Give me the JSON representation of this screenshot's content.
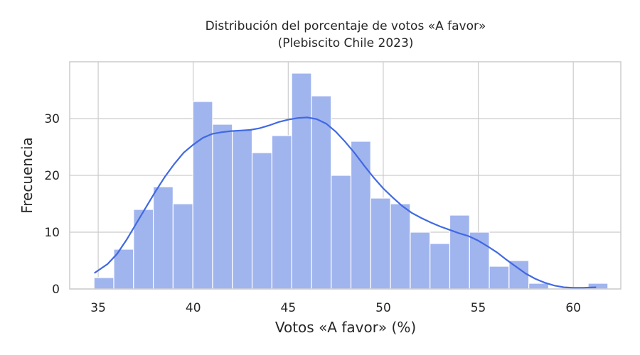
{
  "chart_data": {
    "type": "bar",
    "title": "Distribución del porcentaje de votos «A favor»",
    "subtitle": "(Plebiscito Chile 2023)",
    "xlabel": "Votos «A favor» (%)",
    "ylabel": "Frecuencia",
    "xlim": [
      33.5,
      62.5
    ],
    "ylim": [
      0,
      40
    ],
    "xticks": [
      35,
      40,
      45,
      50,
      55,
      60
    ],
    "yticks": [
      0,
      10,
      20,
      30
    ],
    "grid": true,
    "bin_edges": [
      34.78,
      35.82,
      36.86,
      37.9,
      38.94,
      39.98,
      41.02,
      42.06,
      43.1,
      44.14,
      45.18,
      46.22,
      47.26,
      48.3,
      49.34,
      50.38,
      51.42,
      52.46,
      53.5,
      54.54,
      55.58,
      56.62,
      57.66,
      58.7,
      59.74,
      60.78,
      61.82
    ],
    "values": [
      2,
      7,
      14,
      18,
      15,
      33,
      29,
      28,
      24,
      27,
      38,
      34,
      20,
      26,
      16,
      15,
      10,
      8,
      13,
      10,
      4,
      5,
      1,
      0,
      0,
      1
    ],
    "kde": {
      "x": [
        34.8,
        35.5,
        36,
        36.5,
        37,
        37.5,
        38,
        38.5,
        39,
        39.5,
        40,
        40.5,
        41,
        41.5,
        42,
        42.5,
        43,
        43.5,
        44,
        44.5,
        45,
        45.5,
        46,
        46.5,
        47,
        47.5,
        48,
        48.5,
        49,
        49.5,
        50,
        50.5,
        51,
        51.5,
        52,
        52.5,
        53,
        53.5,
        54,
        54.5,
        55,
        55.5,
        56,
        56.5,
        57,
        57.5,
        58,
        58.5,
        59,
        59.5,
        60,
        60.5,
        61.2
      ],
      "y": [
        2.8,
        4.4,
        6.2,
        8.7,
        11.5,
        14.3,
        17.1,
        19.7,
        22.0,
        24.0,
        25.4,
        26.6,
        27.3,
        27.6,
        27.8,
        27.9,
        28.0,
        28.3,
        28.8,
        29.4,
        29.8,
        30.1,
        30.2,
        29.9,
        29.1,
        27.7,
        25.9,
        23.9,
        21.7,
        19.6,
        17.7,
        16.1,
        14.6,
        13.4,
        12.5,
        11.7,
        11.0,
        10.4,
        9.8,
        9.3,
        8.5,
        7.5,
        6.4,
        5.1,
        3.9,
        2.7,
        1.8,
        1.1,
        0.6,
        0.3,
        0.2,
        0.2,
        0.3
      ]
    },
    "bar_color": "#a0b4ee",
    "line_color": "#4169e1"
  }
}
